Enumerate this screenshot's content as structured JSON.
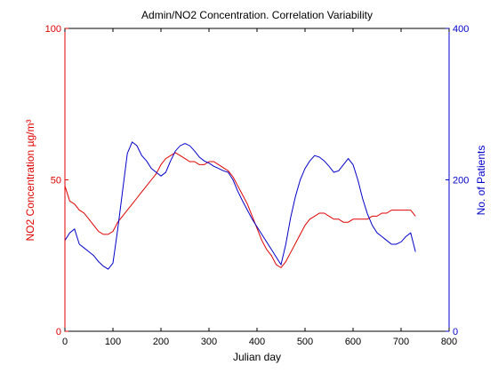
{
  "colors": {
    "no2": "#e00000",
    "patients": "#0000cc",
    "axis": "#000000",
    "background": "#ffffff"
  },
  "chart_data": {
    "type": "line",
    "title": "Admin/NO2 Concentration. Correlation Variability",
    "xlabel": "Julian day",
    "ylabel_left": "NO2 Concentration µg/m³",
    "ylabel_right": "No. of Patients",
    "xlim": [
      0,
      800
    ],
    "ylim_left": [
      0,
      100
    ],
    "ylim_right": [
      0,
      400
    ],
    "xticks": [
      "0",
      "100",
      "200",
      "300",
      "400",
      "500",
      "600",
      "700",
      "800"
    ],
    "yticks_left": [
      "0",
      "50",
      "100"
    ],
    "yticks_right": [
      "0",
      "200",
      "400"
    ],
    "grid": false,
    "series": [
      {
        "name": "NO2 Concentration µg/m³",
        "axis": "left",
        "color": "#e00000",
        "x": [
          0,
          10,
          20,
          30,
          40,
          50,
          60,
          70,
          80,
          90,
          100,
          110,
          120,
          130,
          140,
          150,
          160,
          170,
          180,
          190,
          200,
          210,
          220,
          230,
          240,
          250,
          260,
          270,
          280,
          290,
          300,
          310,
          320,
          330,
          340,
          350,
          360,
          370,
          380,
          390,
          400,
          410,
          420,
          430,
          440,
          450,
          460,
          470,
          480,
          490,
          500,
          510,
          520,
          530,
          540,
          550,
          560,
          570,
          580,
          590,
          600,
          610,
          620,
          630,
          640,
          650,
          660,
          670,
          680,
          690,
          700,
          710,
          720,
          730
        ],
        "values": [
          48,
          43,
          42,
          40,
          39,
          37,
          35,
          33,
          32,
          32,
          33,
          36,
          38,
          40,
          42,
          44,
          46,
          48,
          50,
          52,
          55,
          57,
          58,
          59,
          58,
          57,
          56,
          56,
          55,
          55,
          56,
          56,
          55,
          54,
          53,
          51,
          48,
          45,
          42,
          38,
          34,
          30,
          27,
          25,
          22,
          21,
          23,
          26,
          29,
          32,
          35,
          37,
          38,
          39,
          39,
          38,
          37,
          37,
          36,
          36,
          37,
          37,
          37,
          37,
          38,
          38,
          39,
          39,
          40,
          40,
          40,
          40,
          40,
          38
        ]
      },
      {
        "name": "No. of Patients",
        "axis": "right",
        "color": "#0000cc",
        "x": [
          0,
          10,
          20,
          30,
          40,
          50,
          60,
          70,
          80,
          90,
          100,
          110,
          120,
          130,
          140,
          150,
          160,
          170,
          180,
          190,
          200,
          210,
          220,
          230,
          240,
          250,
          260,
          270,
          280,
          290,
          300,
          310,
          320,
          330,
          340,
          350,
          360,
          370,
          380,
          390,
          400,
          410,
          420,
          430,
          440,
          450,
          460,
          470,
          480,
          490,
          500,
          510,
          520,
          530,
          540,
          550,
          560,
          570,
          580,
          590,
          600,
          610,
          620,
          630,
          640,
          650,
          660,
          670,
          680,
          690,
          700,
          710,
          720,
          730
        ],
        "values": [
          120,
          130,
          135,
          115,
          110,
          105,
          100,
          92,
          86,
          82,
          90,
          135,
          185,
          235,
          250,
          245,
          232,
          225,
          215,
          210,
          205,
          210,
          225,
          238,
          245,
          248,
          245,
          238,
          230,
          225,
          222,
          218,
          215,
          212,
          210,
          200,
          185,
          172,
          160,
          148,
          138,
          128,
          118,
          108,
          98,
          88,
          115,
          150,
          178,
          200,
          215,
          225,
          232,
          230,
          225,
          218,
          210,
          212,
          220,
          228,
          220,
          200,
          175,
          155,
          140,
          130,
          125,
          120,
          115,
          115,
          118,
          125,
          130,
          105
        ]
      }
    ]
  }
}
